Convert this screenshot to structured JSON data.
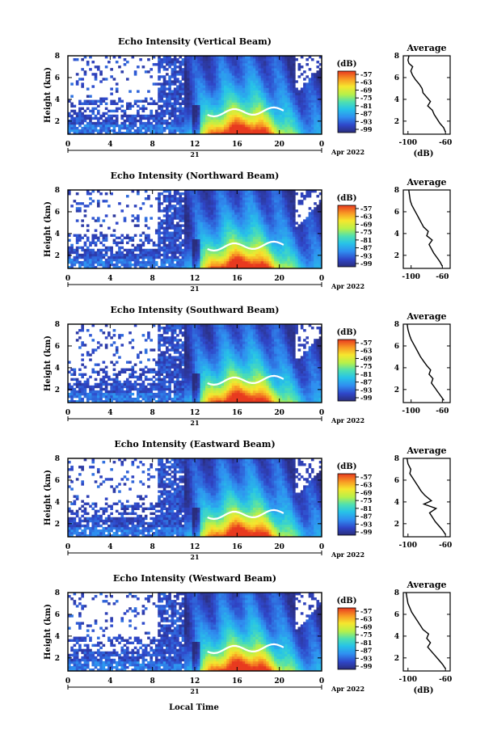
{
  "figure": {
    "date_label": "Apr 2022",
    "day_label": "21",
    "xlabel_bottom": "Local Time",
    "colorbar_unit": "(dB)",
    "average_title": "Average",
    "average_xlabel": "(dB)"
  },
  "chart_data": [
    {
      "type": "heatmap",
      "title": "Echo Intensity (Vertical Beam)",
      "xlabel": "",
      "ylabel": "Height (km)",
      "x_ticks": [
        "0",
        "4",
        "8",
        "12",
        "16",
        "20",
        "0"
      ],
      "y_ticks": [
        "2",
        "4",
        "6",
        "8"
      ],
      "xlim": [
        0,
        24
      ],
      "ylim": [
        0.8,
        8.0
      ],
      "colorbar_ticks": [
        "-57",
        "-63",
        "-69",
        "-75",
        "-81",
        "-87",
        "-93",
        "-99"
      ],
      "average_profile": {
        "type": "line",
        "xlim": [
          -105,
          -55
        ],
        "ylim": [
          0.8,
          8.0
        ],
        "x_ticks": [
          "-100",
          "-60"
        ],
        "y_ticks": [
          "2",
          "4",
          "6",
          "8"
        ],
        "x": [
          -60,
          -62,
          -66,
          -69,
          -72,
          -74,
          -79,
          -76,
          -80,
          -84,
          -85,
          -88,
          -92,
          -95,
          -97,
          -95,
          -99,
          -100,
          -99
        ],
        "y": [
          1.0,
          1.4,
          1.8,
          2.2,
          2.6,
          3.0,
          3.4,
          3.8,
          4.2,
          4.6,
          5.0,
          5.4,
          5.8,
          6.2,
          6.6,
          7.0,
          7.3,
          7.6,
          8.0
        ]
      }
    },
    {
      "type": "heatmap",
      "title": "Echo Intensity (Northward Beam)",
      "xlabel": "",
      "ylabel": "Height (km)",
      "x_ticks": [
        "0",
        "4",
        "8",
        "12",
        "16",
        "20",
        "0"
      ],
      "y_ticks": [
        "2",
        "4",
        "6",
        "8"
      ],
      "xlim": [
        0,
        24
      ],
      "ylim": [
        0.8,
        8.0
      ],
      "colorbar_ticks": [
        "-57",
        "-63",
        "-69",
        "-75",
        "-81",
        "-87",
        "-93",
        "-99"
      ],
      "average_profile": {
        "type": "line",
        "xlim": [
          -110,
          -50
        ],
        "ylim": [
          0.8,
          8.0
        ],
        "x_ticks": [
          "-100",
          "-60"
        ],
        "y_ticks": [
          "2",
          "4",
          "6",
          "8"
        ],
        "x": [
          -60,
          -63,
          -67,
          -71,
          -74,
          -77,
          -73,
          -80,
          -78,
          -84,
          -87,
          -90,
          -93,
          -96,
          -99,
          -101,
          -102,
          -103
        ],
        "y": [
          1.0,
          1.4,
          1.8,
          2.2,
          2.6,
          3.0,
          3.4,
          3.8,
          4.2,
          4.6,
          5.0,
          5.4,
          5.8,
          6.2,
          6.6,
          7.0,
          7.5,
          8.0
        ]
      }
    },
    {
      "type": "heatmap",
      "title": "Echo Intensity (Southward Beam)",
      "xlabel": "",
      "ylabel": "Height (km)",
      "x_ticks": [
        "0",
        "4",
        "8",
        "12",
        "16",
        "20",
        "0"
      ],
      "y_ticks": [
        "2",
        "4",
        "6",
        "8"
      ],
      "xlim": [
        0,
        24
      ],
      "ylim": [
        0.8,
        8.0
      ],
      "colorbar_ticks": [
        "-57",
        "-63",
        "-69",
        "-75",
        "-81",
        "-87",
        "-93",
        "-99"
      ],
      "average_profile": {
        "type": "line",
        "xlim": [
          -110,
          -50
        ],
        "ylim": [
          0.8,
          8.0
        ],
        "x_ticks": [
          "-100",
          "-60"
        ],
        "y_ticks": [
          "2",
          "4",
          "6",
          "8"
        ],
        "x": [
          -58,
          -62,
          -66,
          -70,
          -74,
          -72,
          -77,
          -75,
          -80,
          -84,
          -88,
          -91,
          -94,
          -97,
          -100,
          -102,
          -104,
          -105
        ],
        "y": [
          1.0,
          1.4,
          1.8,
          2.2,
          2.6,
          3.0,
          3.4,
          3.8,
          4.2,
          4.6,
          5.0,
          5.4,
          5.8,
          6.2,
          6.6,
          7.0,
          7.5,
          8.0
        ]
      }
    },
    {
      "type": "heatmap",
      "title": "Echo Intensity (Eastward Beam)",
      "xlabel": "",
      "ylabel": "Height (km)",
      "x_ticks": [
        "0",
        "4",
        "8",
        "12",
        "16",
        "20",
        "0"
      ],
      "y_ticks": [
        "2",
        "4",
        "6",
        "8"
      ],
      "xlim": [
        0,
        24
      ],
      "ylim": [
        0.8,
        8.0
      ],
      "colorbar_ticks": [
        "-57",
        "-63",
        "-69",
        "-75",
        "-81",
        "-87",
        "-93",
        "-99"
      ],
      "average_profile": {
        "type": "line",
        "xlim": [
          -105,
          -55
        ],
        "ylim": [
          0.8,
          8.0
        ],
        "x_ticks": [
          "-100",
          "-60"
        ],
        "y_ticks": [
          "2",
          "4",
          "6",
          "8"
        ],
        "x": [
          -60,
          -63,
          -67,
          -71,
          -74,
          -77,
          -70,
          -83,
          -75,
          -82,
          -86,
          -89,
          -92,
          -95,
          -98,
          -97,
          -100,
          -101
        ],
        "y": [
          1.0,
          1.4,
          1.8,
          2.2,
          2.6,
          3.0,
          3.4,
          3.8,
          4.1,
          4.6,
          5.0,
          5.4,
          5.8,
          6.2,
          6.6,
          7.0,
          7.5,
          8.0
        ]
      }
    },
    {
      "type": "heatmap",
      "title": "Echo Intensity (Westward Beam)",
      "xlabel": "Local Time",
      "ylabel": "Height (km)",
      "x_ticks": [
        "0",
        "4",
        "8",
        "12",
        "16",
        "20",
        "0"
      ],
      "y_ticks": [
        "2",
        "4",
        "6",
        "8"
      ],
      "xlim": [
        0,
        24
      ],
      "ylim": [
        0.8,
        8.0
      ],
      "colorbar_ticks": [
        "-57",
        "-63",
        "-69",
        "-75",
        "-81",
        "-87",
        "-93",
        "-99"
      ],
      "average_profile": {
        "type": "line",
        "xlim": [
          -105,
          -55
        ],
        "ylim": [
          0.8,
          8.0
        ],
        "x_ticks": [
          "-100",
          "-60"
        ],
        "y_ticks": [
          "2",
          "4",
          "6",
          "8"
        ],
        "x": [
          -60,
          -63,
          -67,
          -71,
          -75,
          -79,
          -76,
          -80,
          -78,
          -84,
          -87,
          -90,
          -93,
          -96,
          -98,
          -100,
          -101,
          -102
        ],
        "y": [
          1.0,
          1.4,
          1.8,
          2.2,
          2.6,
          3.0,
          3.4,
          3.8,
          4.2,
          4.6,
          5.0,
          5.4,
          5.8,
          6.2,
          6.6,
          7.0,
          7.5,
          8.0
        ]
      }
    }
  ]
}
